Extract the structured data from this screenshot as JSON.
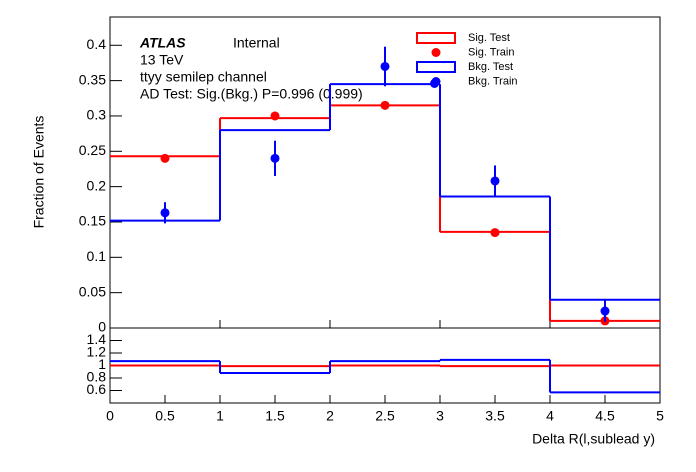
{
  "chart_data": [
    {
      "type": "histogram",
      "ylabel": "Fraction of Events",
      "atlas": "ATLAS",
      "status": "Internal",
      "energy": "13 TeV",
      "channel": "ttyy semilep channel",
      "annotation": "AD Test: Sig.(Bkg.) P=0.996 (0.999)",
      "bins": [
        0,
        1,
        2,
        3,
        4,
        5
      ],
      "xlim": [
        0,
        5
      ],
      "ylim": [
        0,
        0.44
      ],
      "yticks": [
        0,
        0.05,
        0.1,
        0.15,
        0.2,
        0.25,
        0.3,
        0.35,
        0.4
      ],
      "series": [
        {
          "name": "Sig. Test",
          "style": "step",
          "color": "#ff0000",
          "values": [
            0.243,
            0.297,
            0.315,
            0.136,
            0.01
          ]
        },
        {
          "name": "Sig. Train",
          "style": "points",
          "color": "#ff0000",
          "values": [
            0.24,
            0.3,
            0.315,
            0.135,
            0.01
          ],
          "errors": [
            0.004,
            0.006,
            0.006,
            0.004,
            0.002
          ]
        },
        {
          "name": "Bkg. Test",
          "style": "step",
          "color": "#0000ff",
          "values": [
            0.152,
            0.28,
            0.345,
            0.186,
            0.04
          ]
        },
        {
          "name": "Bkg. Train",
          "style": "points",
          "color": "#0000ff",
          "values": [
            0.163,
            0.24,
            0.37,
            0.346,
            0.208,
            0.024
          ],
          "centers": [
            0.5,
            1.5,
            2.5,
            2.95,
            3.5,
            4.5
          ],
          "errors": [
            0.015,
            0.025,
            0.028,
            0.004,
            0.022,
            0.015
          ]
        }
      ]
    },
    {
      "type": "histogram",
      "xlabel": "Delta R(l,sublead y)",
      "bins": [
        0,
        1,
        2,
        3,
        4,
        5
      ],
      "xlim": [
        0,
        5
      ],
      "ylim": [
        0.4,
        1.6
      ],
      "xticks": [
        0,
        0.5,
        1,
        1.5,
        2,
        2.5,
        3,
        3.5,
        4,
        4.5,
        5
      ],
      "yticks": [
        0.6,
        0.8,
        1,
        1.2,
        1.4
      ],
      "series": [
        {
          "style": "step",
          "color": "#ff0000",
          "values": [
            1.0,
            0.99,
            1.0,
            0.99,
            1.0
          ]
        },
        {
          "style": "step",
          "color": "#0000ff",
          "values": [
            1.07,
            0.88,
            1.07,
            1.09,
            0.57
          ]
        }
      ]
    }
  ]
}
